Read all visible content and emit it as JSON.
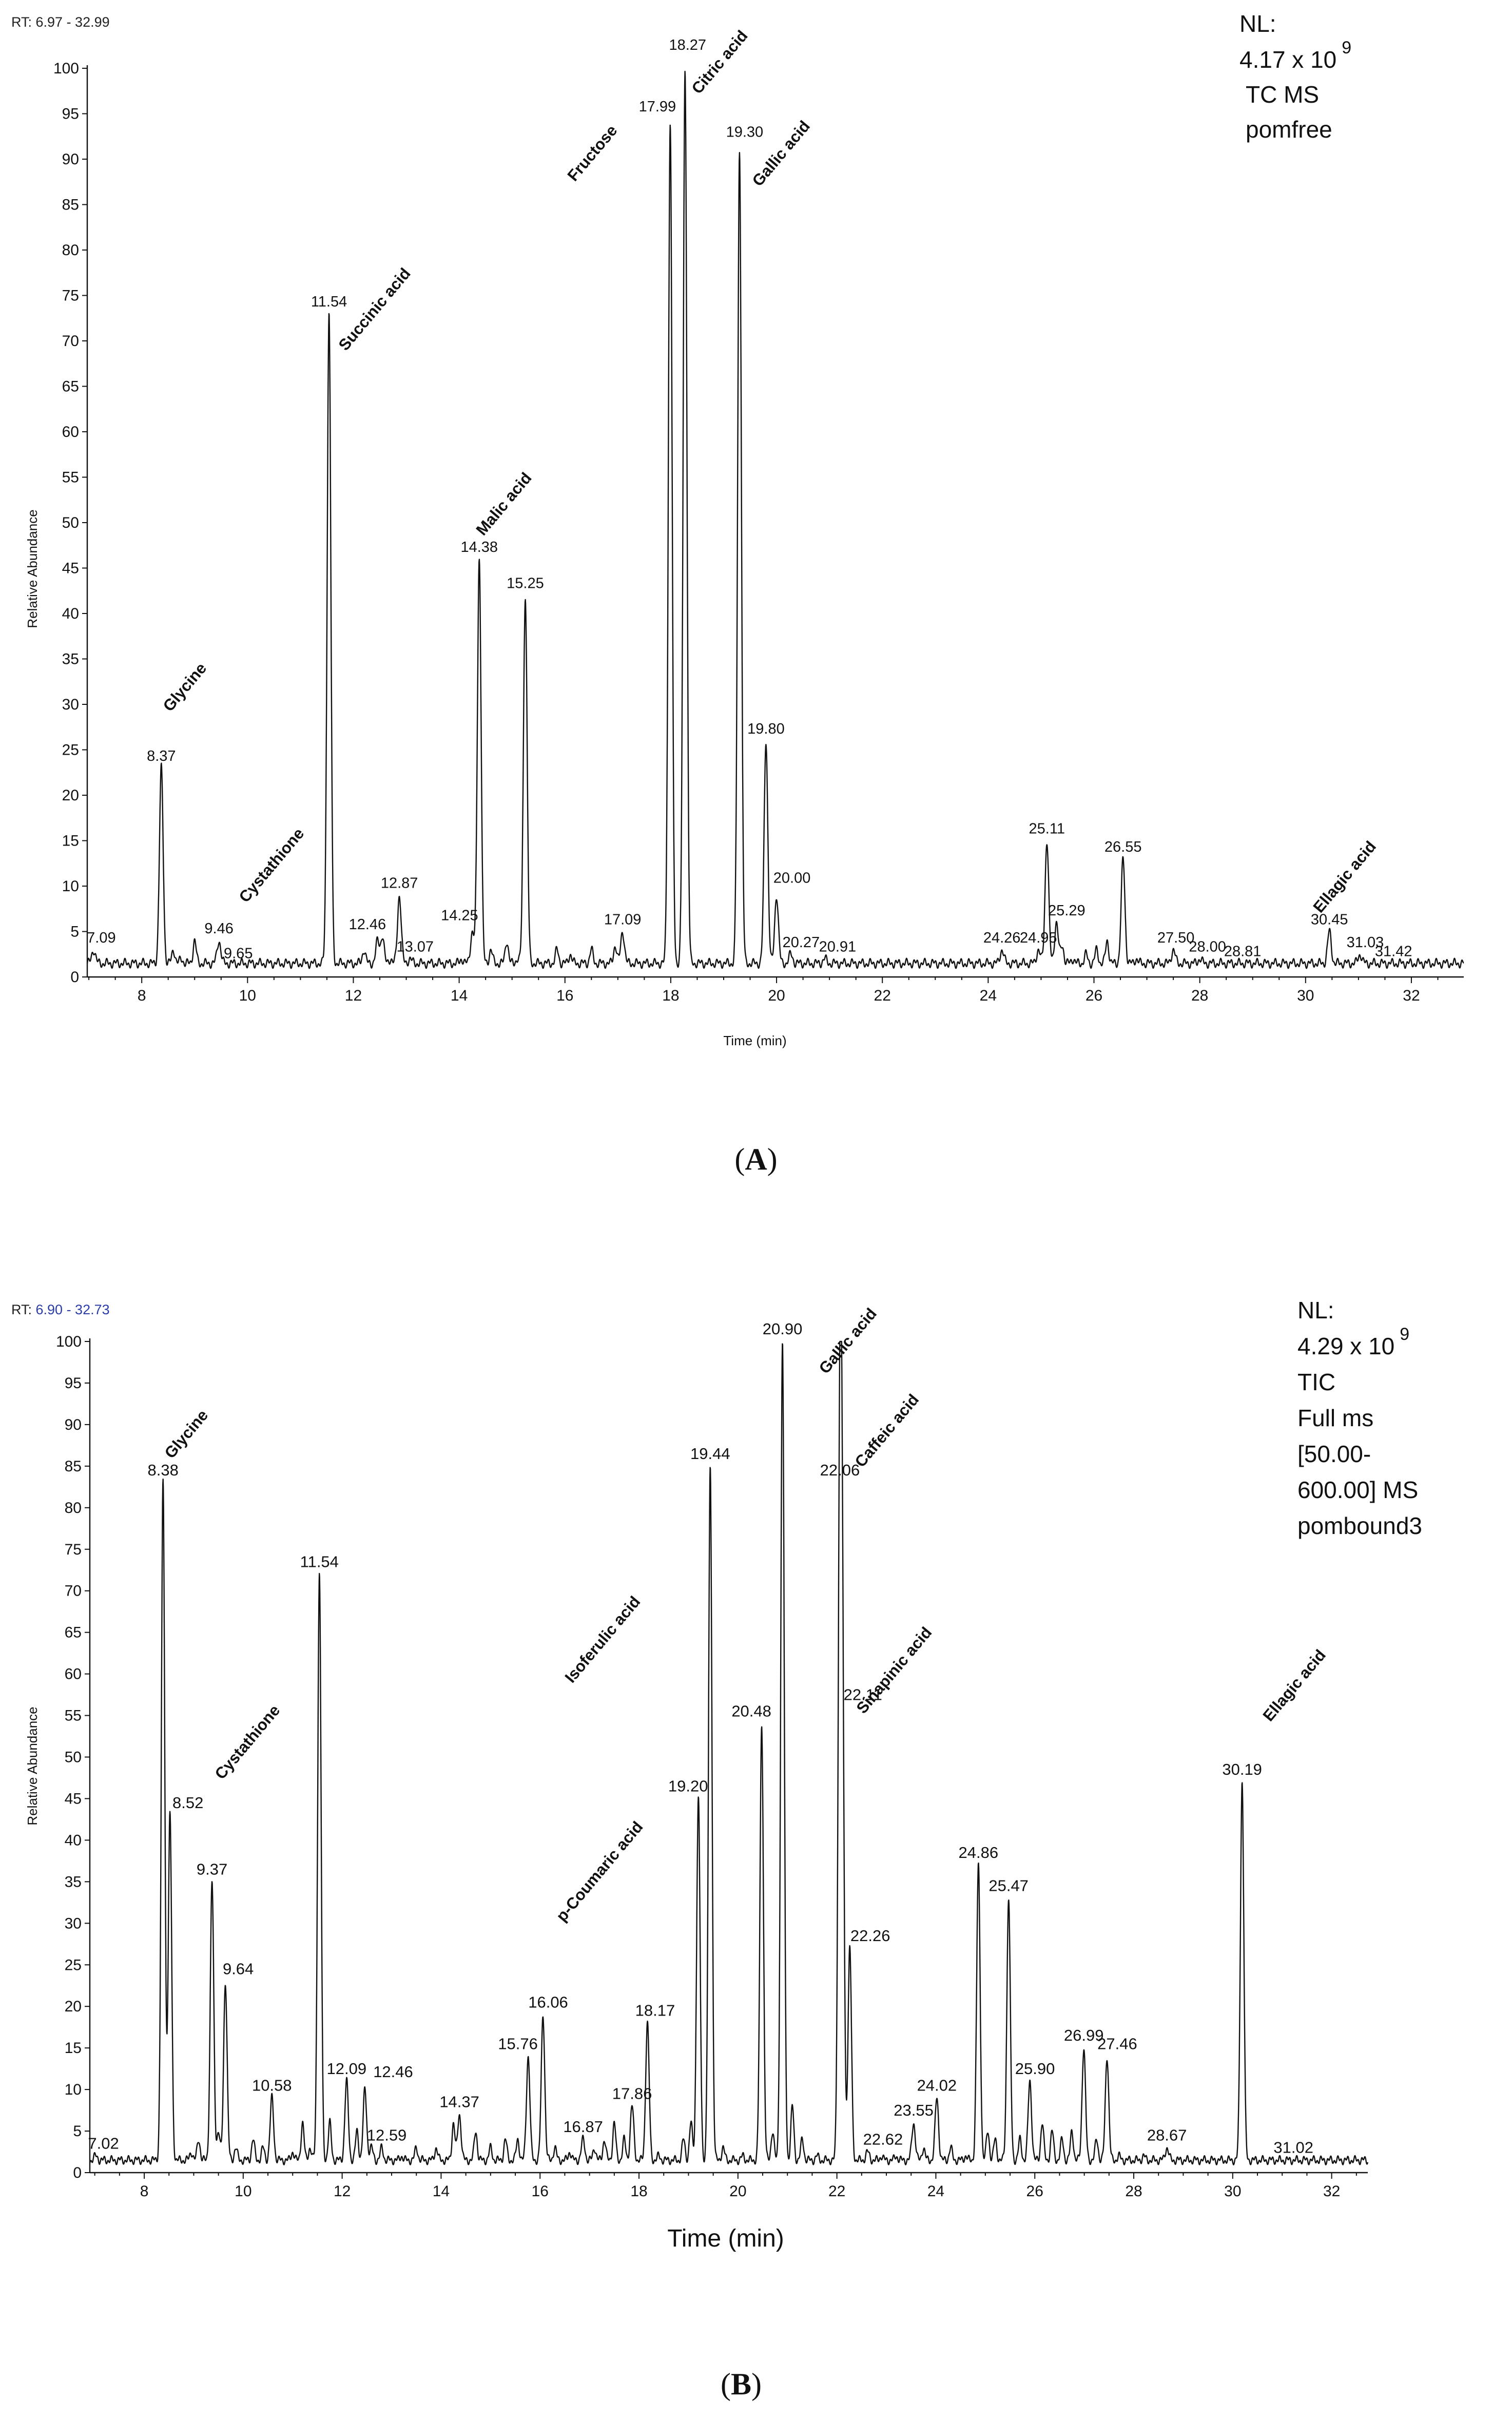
{
  "panels": [
    {
      "rt_prefix": "RT: ",
      "rt_range": "6.97 - 32.99",
      "nl_label": "NL:",
      "nl_base": "4.17 x 10",
      "nl_exp": "9",
      "nl_lines": [
        "TC MS",
        "pomfree"
      ],
      "caption_letter": "A",
      "caption_open": "(",
      "caption_close": ")"
    },
    {
      "rt_prefix": "RT: ",
      "rt_range": "6.90 - 32.73",
      "nl_label": "NL:",
      "nl_base": "4.29 x 10",
      "nl_exp": "9",
      "nl_lines": [
        "TIC",
        "Full ms",
        "[50.00-",
        "600.00] MS",
        "pombound3"
      ],
      "caption_letter": "B",
      "caption_open": "(",
      "caption_close": ")"
    }
  ],
  "chart_data": [
    {
      "type": "line",
      "xlabel": "Time (min)",
      "ylabel": "Relative Abundance",
      "xlim": [
        6.97,
        32.99
      ],
      "ylim": [
        0,
        100
      ],
      "x_ticks": [
        8,
        10,
        12,
        14,
        16,
        18,
        20,
        22,
        24,
        26,
        28,
        30,
        32
      ],
      "y_ticks": [
        0,
        5,
        10,
        15,
        20,
        25,
        30,
        35,
        40,
        45,
        50,
        55,
        60,
        65,
        70,
        75,
        80,
        85,
        90,
        95,
        100
      ],
      "baseline": 1.5,
      "peaks": [
        {
          "rt": 7.09,
          "height": 3,
          "label": "7.09"
        },
        {
          "rt": 8.37,
          "height": 23,
          "label": "8.37",
          "compound": "Glycine"
        },
        {
          "rt": 9.46,
          "height": 4,
          "label": "9.46"
        },
        {
          "rt": 9.65,
          "height": 1.5,
          "label": "9.65"
        },
        {
          "rt": 11.54,
          "height": 73,
          "label": "11.54",
          "compound": "Succinic acid"
        },
        {
          "rt": 12.46,
          "height": 4,
          "label": "12.46"
        },
        {
          "rt": 12.87,
          "height": 9,
          "label": "12.87"
        },
        {
          "rt": 13.07,
          "height": 2,
          "label": "13.07"
        },
        {
          "rt": 14.25,
          "height": 5,
          "label": "14.25"
        },
        {
          "rt": 14.38,
          "height": 46,
          "label": "14.38",
          "compound": "Malic acid"
        },
        {
          "rt": 15.25,
          "height": 42,
          "label": "15.25"
        },
        {
          "rt": 17.09,
          "height": 5,
          "label": "17.09"
        },
        {
          "rt": 17.99,
          "height": 94,
          "label": "17.99",
          "compound": "Fructose"
        },
        {
          "rt": 18.27,
          "height": 100,
          "label": "18.27",
          "compound": "Citric acid"
        },
        {
          "rt": 19.3,
          "height": 91,
          "label": "19.30",
          "compound": "Gallic acid"
        },
        {
          "rt": 19.8,
          "height": 26,
          "label": "19.80"
        },
        {
          "rt": 20.0,
          "height": 9,
          "label": "20.00"
        },
        {
          "rt": 20.27,
          "height": 2.5,
          "label": "20.27"
        },
        {
          "rt": 20.91,
          "height": 2,
          "label": "20.91"
        },
        {
          "rt": 24.26,
          "height": 3,
          "label": "24.26"
        },
        {
          "rt": 24.95,
          "height": 3,
          "label": "24.95"
        },
        {
          "rt": 25.11,
          "height": 15,
          "label": "25.11"
        },
        {
          "rt": 25.29,
          "height": 6,
          "label": "25.29"
        },
        {
          "rt": 26.55,
          "height": 13,
          "label": "26.55"
        },
        {
          "rt": 27.5,
          "height": 3,
          "label": "27.50"
        },
        {
          "rt": 28.0,
          "height": 2,
          "label": "28.00"
        },
        {
          "rt": 28.81,
          "height": 1.5,
          "label": "28.81"
        },
        {
          "rt": 30.45,
          "height": 5,
          "label": "30.45",
          "compound": "Ellagic acid"
        },
        {
          "rt": 31.03,
          "height": 2.5,
          "label": "31.03"
        },
        {
          "rt": 31.42,
          "height": 1.5,
          "label": "31.42"
        }
      ],
      "annotations": [
        "Cystathione"
      ]
    },
    {
      "type": "line",
      "xlabel": "Time (min)",
      "ylabel": "Relative Abundance",
      "xlim": [
        6.9,
        32.73
      ],
      "ylim": [
        0,
        100
      ],
      "x_ticks": [
        8,
        10,
        12,
        14,
        16,
        18,
        20,
        22,
        24,
        26,
        28,
        30,
        32
      ],
      "y_ticks": [
        0,
        5,
        10,
        15,
        20,
        25,
        30,
        35,
        40,
        45,
        50,
        55,
        60,
        65,
        70,
        75,
        80,
        85,
        90,
        95,
        100
      ],
      "baseline": 1.5,
      "peaks": [
        {
          "rt": 7.02,
          "height": 2,
          "label": "7.02"
        },
        {
          "rt": 8.38,
          "height": 83,
          "label": "8.38",
          "compound": "Glycine"
        },
        {
          "rt": 8.52,
          "height": 43,
          "label": "8.52"
        },
        {
          "rt": 9.37,
          "height": 35,
          "label": "9.37"
        },
        {
          "rt": 9.64,
          "height": 23,
          "label": "9.64",
          "compound": "Cystathione"
        },
        {
          "rt": 10.58,
          "height": 9,
          "label": "10.58"
        },
        {
          "rt": 11.54,
          "height": 72,
          "label": "11.54"
        },
        {
          "rt": 12.09,
          "height": 11,
          "label": "12.09"
        },
        {
          "rt": 12.46,
          "height": 10,
          "label": "12.46"
        },
        {
          "rt": 12.59,
          "height": 3,
          "label": "12.59"
        },
        {
          "rt": 14.37,
          "height": 7,
          "label": "14.37"
        },
        {
          "rt": 15.76,
          "height": 14,
          "label": "15.76"
        },
        {
          "rt": 16.06,
          "height": 19,
          "label": "16.06",
          "compound": "p-Coumaric acid"
        },
        {
          "rt": 16.87,
          "height": 4,
          "label": "16.87"
        },
        {
          "rt": 17.86,
          "height": 8,
          "label": "17.86"
        },
        {
          "rt": 18.17,
          "height": 18,
          "label": "18.17"
        },
        {
          "rt": 19.2,
          "height": 45,
          "label": "19.20",
          "compound": "Isoferulic acid"
        },
        {
          "rt": 19.44,
          "height": 85,
          "label": "19.44"
        },
        {
          "rt": 20.48,
          "height": 54,
          "label": "20.48"
        },
        {
          "rt": 20.9,
          "height": 100,
          "label": "20.90",
          "compound": "Gallic acid"
        },
        {
          "rt": 22.06,
          "height": 83,
          "label": "22.06",
          "compound": "Caffeic acid"
        },
        {
          "rt": 22.11,
          "height": 56,
          "label": "22.11"
        },
        {
          "rt": 22.26,
          "height": 27,
          "label": "22.26",
          "compound": "Sinapinic acid"
        },
        {
          "rt": 22.62,
          "height": 2.5,
          "label": "22.62"
        },
        {
          "rt": 23.55,
          "height": 6,
          "label": "23.55"
        },
        {
          "rt": 24.02,
          "height": 9,
          "label": "24.02"
        },
        {
          "rt": 24.86,
          "height": 37,
          "label": "24.86"
        },
        {
          "rt": 25.47,
          "height": 33,
          "label": "25.47"
        },
        {
          "rt": 25.9,
          "height": 11,
          "label": "25.90"
        },
        {
          "rt": 26.99,
          "height": 15,
          "label": "26.99"
        },
        {
          "rt": 27.46,
          "height": 14,
          "label": "27.46"
        },
        {
          "rt": 28.67,
          "height": 3,
          "label": "28.67"
        },
        {
          "rt": 30.19,
          "height": 47,
          "label": "30.19",
          "compound": "Ellagic acid"
        },
        {
          "rt": 31.02,
          "height": 1.5,
          "label": "31.02"
        }
      ]
    }
  ]
}
